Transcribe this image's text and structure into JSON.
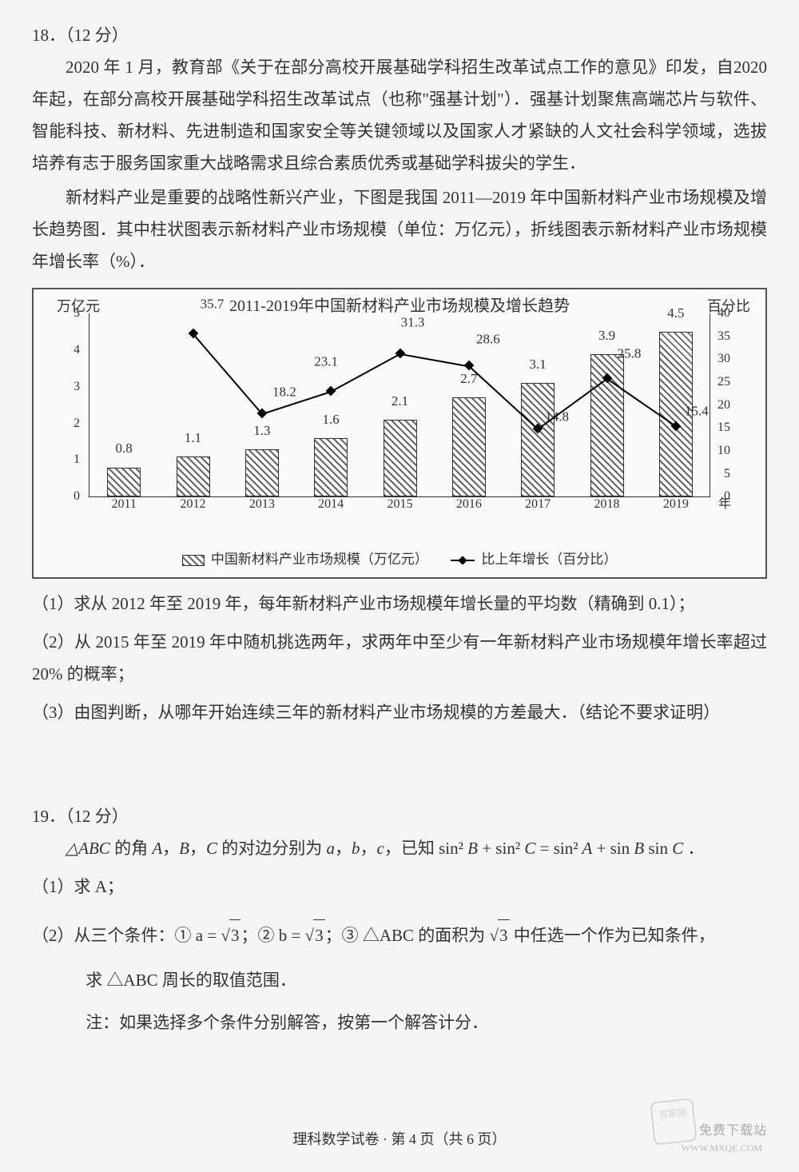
{
  "q18": {
    "num": "18．（12 分）",
    "p1": "2020 年 1 月，教育部《关于在部分高校开展基础学科招生改革试点工作的意见》印发，自2020 年起，在部分高校开展基础学科招生改革试点（也称\"强基计划\"）．强基计划聚焦高端芯片与软件、智能科技、新材料、先进制造和国家安全等关键领域以及国家人才紧缺的人文社会科学领域，选拔培养有志于服务国家重大战略需求且综合素质优秀或基础学科拔尖的学生．",
    "p2": "新材料产业是重要的战略性新兴产业，下图是我国 2011—2019 年中国新材料产业市场规模及增长趋势图．其中柱状图表示新材料产业市场规模（单位：万亿元），折线图表示新材料产业市场规模年增长率（%）．",
    "sub1": "（1）求从 2012 年至 2019 年，每年新材料产业市场规模年增长量的平均数（精确到 0.1）；",
    "sub2": "（2）从 2015 年至 2019 年中随机挑选两年，求两年中至少有一年新材料产业市场规模年增长率超过 20% 的概率；",
    "sub3": "（3）由图判断，从哪年开始连续三年的新材料产业市场规模的方差最大．（结论不要求证明）"
  },
  "chart": {
    "title": "2011-2019年中国新材料产业市场规模及增长趋势",
    "y_left_label": "万亿元",
    "y_right_label": "百分比",
    "x_label": "年",
    "ylim_left": [
      0,
      5
    ],
    "ylim_right": [
      0,
      40
    ],
    "ytick_left": [
      0,
      1,
      2,
      3,
      4,
      5
    ],
    "ytick_right": [
      0,
      5,
      10,
      15,
      20,
      25,
      30,
      35,
      40
    ],
    "categories": [
      "2011",
      "2012",
      "2013",
      "2014",
      "2015",
      "2016",
      "2017",
      "2018",
      "2019"
    ],
    "bar_values": [
      0.8,
      1.1,
      1.3,
      1.6,
      2.1,
      2.7,
      3.1,
      3.9,
      4.5
    ],
    "bar_labels": [
      "0.8",
      "1.1",
      "1.3",
      "1.6",
      "2.1",
      "2.7",
      "3.1",
      "3.9",
      "4.5"
    ],
    "line_values": [
      null,
      35.7,
      18.2,
      23.1,
      31.3,
      28.6,
      14.8,
      25.8,
      15.4
    ],
    "line_labels": [
      "",
      "35.7",
      "18.2",
      "23.1",
      "31.3",
      "28.6",
      "14.8",
      "25.8",
      "15.4"
    ],
    "legend_bar": "中国新材料产业市场规模（万亿元）",
    "legend_line": "比上年增长（百分比）",
    "bar_color": "#666666",
    "line_color": "#000000",
    "grid_color": "#888888",
    "background_color": "#fafafa"
  },
  "q19": {
    "num": "19．（12 分）",
    "p1_prefix": "△",
    "p1": "ABC 的角 A，B，C 的对边分别为 a，b，c，已知 sin² B + sin² C = sin² A + sin B sin C ．",
    "sub1": "（1）求 A；",
    "sub2_prefix": "（2）从三个条件：① a = ",
    "sub2_mid1": "；② b = ",
    "sub2_mid2": "；③ △ABC 的面积为 ",
    "sub2_suffix": " 中任选一个作为已知条件，",
    "sqrt3": "3",
    "sub2b": "求 △ABC 周长的取值范围．",
    "note": "注：如果选择多个条件分别解答，按第一个解答计分．"
  },
  "footer": "理科数学试卷 · 第 4 页（共 6 页）",
  "watermark_main": "免费下载站",
  "watermark_sub": "WWW.MXQE.COM",
  "stamp": "答案圈"
}
